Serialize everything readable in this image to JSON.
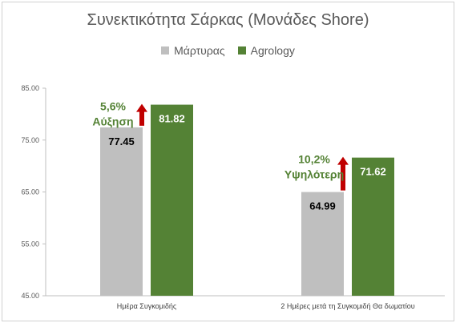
{
  "chart_data": {
    "type": "bar",
    "title": "Συνεκτικότητα Σάρκας (Μονάδες Shore)",
    "categories": [
      "Ημέρα Συγκομιδής",
      "2 Ημέρες μετά τη Συγκομιδή Θα δωματίου"
    ],
    "series": [
      {
        "name": "Μάρτυρας",
        "values": [
          77.45,
          64.99
        ],
        "labels": [
          "77.45",
          "64.99"
        ],
        "color": "#bfbfbf"
      },
      {
        "name": "Agrology",
        "values": [
          81.82,
          71.62
        ],
        "labels": [
          "81.82",
          "71.62"
        ],
        "color": "#548235"
      }
    ],
    "ylim": [
      45,
      85
    ],
    "yticks": [
      "45.00",
      "55.00",
      "65.00",
      "75.00",
      "85.00"
    ],
    "annotations": [
      {
        "line1": "5,6%",
        "line2": "Αύξηση",
        "color": "#548235",
        "arrow_color": "#c00000"
      },
      {
        "line1": "10,2%",
        "line2": "Υψηλότερη",
        "color": "#548235",
        "arrow_color": "#c00000"
      }
    ],
    "grid": false,
    "legend_position": "top"
  }
}
